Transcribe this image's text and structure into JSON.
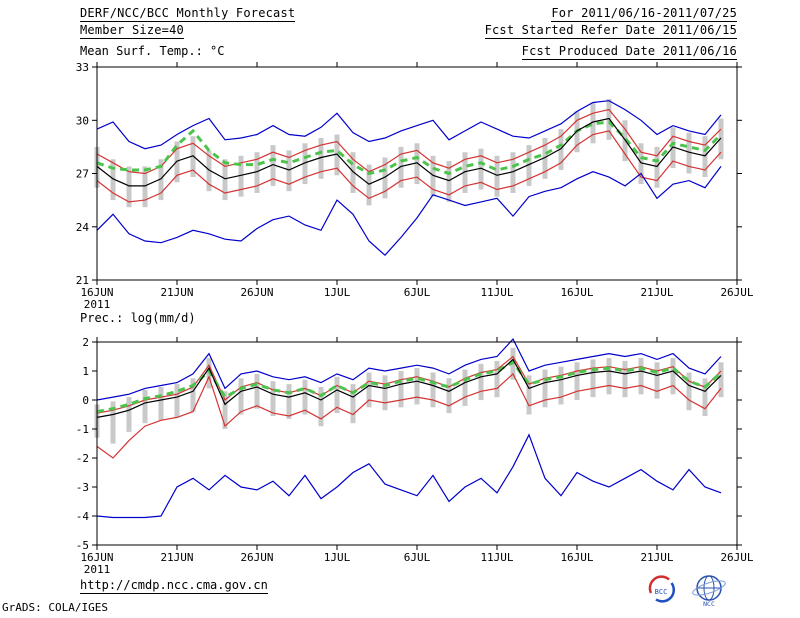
{
  "header": {
    "title": "DERF/NCC/BCC Monthly Forecast",
    "member_size": "Member Size=40",
    "for_range": "For 2011/06/16-2011/07/25",
    "fcst_started": "Fcst Started Refer Date 2011/06/15",
    "fcst_produced": "Fcst Produced Date 2011/06/16"
  },
  "footer": {
    "url": "http://cmdp.ncc.cma.gov.cn",
    "credit": "GrADS: COLA/IGES",
    "bcc_label": "BCC",
    "ncc_label": "NCC"
  },
  "colors": {
    "blue": "#0000cc",
    "red": "#d43434",
    "green": "#4cc44c",
    "black": "#000000",
    "spread": "#c9c9c9",
    "frame": "#000000"
  },
  "chart_data": [
    {
      "type": "line",
      "title": "Mean Surf. Temp.: °C",
      "ylim": [
        21,
        33
      ],
      "yticks": [
        21,
        24,
        27,
        30,
        33
      ],
      "x_total_days": 40,
      "xticks": [
        {
          "day": 0,
          "label": "16JUN",
          "sub": "2011"
        },
        {
          "day": 5,
          "label": "21JUN"
        },
        {
          "day": 10,
          "label": "26JUN"
        },
        {
          "day": 15,
          "label": "1JUL"
        },
        {
          "day": 20,
          "label": "6JUL"
        },
        {
          "day": 25,
          "label": "11JUL"
        },
        {
          "day": 30,
          "label": "16JUL"
        },
        {
          "day": 35,
          "label": "21JUL"
        },
        {
          "day": 40,
          "label": "26JUL"
        }
      ],
      "series": [
        {
          "name": "ensemble_max",
          "color": "blue",
          "style": "solid",
          "values": [
            29.5,
            29.9,
            28.8,
            28.4,
            28.6,
            29.2,
            29.7,
            30.1,
            28.9,
            29.0,
            29.2,
            29.7,
            29.2,
            29.1,
            29.6,
            30.4,
            29.3,
            28.8,
            29.0,
            29.4,
            29.7,
            30.0,
            28.9,
            29.4,
            29.9,
            29.5,
            29.1,
            29.0,
            29.4,
            29.8,
            30.5,
            31.0,
            31.1,
            30.6,
            30.0,
            29.2,
            29.7,
            29.4,
            29.2,
            30.3
          ]
        },
        {
          "name": "upper_tercile",
          "color": "red",
          "style": "solid",
          "values": [
            28.1,
            27.6,
            27.1,
            27.0,
            27.4,
            28.4,
            28.7,
            28.0,
            27.4,
            27.6,
            27.8,
            28.2,
            27.9,
            28.3,
            28.6,
            28.8,
            27.8,
            27.1,
            27.5,
            28.1,
            28.3,
            27.6,
            27.3,
            27.8,
            28.0,
            27.6,
            27.8,
            28.2,
            28.6,
            29.1,
            30.0,
            30.4,
            30.6,
            29.5,
            28.2,
            28.0,
            29.1,
            28.8,
            28.6,
            29.5
          ]
        },
        {
          "name": "ensemble_median",
          "color": "green",
          "style": "dashed",
          "values": [
            27.6,
            27.3,
            27.2,
            27.2,
            27.4,
            28.6,
            29.4,
            28.3,
            27.6,
            27.5,
            27.5,
            27.8,
            27.6,
            27.9,
            28.2,
            28.3,
            27.5,
            27.0,
            27.2,
            27.7,
            27.9,
            27.3,
            27.0,
            27.4,
            27.6,
            27.2,
            27.4,
            27.8,
            28.1,
            28.6,
            29.4,
            29.8,
            29.9,
            29.0,
            27.9,
            27.7,
            28.7,
            28.5,
            28.3,
            29.2
          ]
        },
        {
          "name": "ensemble_mean",
          "color": "black",
          "style": "solid",
          "values": [
            27.4,
            26.7,
            26.3,
            26.3,
            26.7,
            27.7,
            28.0,
            27.2,
            26.7,
            26.9,
            27.1,
            27.5,
            27.2,
            27.6,
            27.9,
            28.1,
            27.1,
            26.4,
            26.8,
            27.4,
            27.6,
            26.9,
            26.6,
            27.1,
            27.3,
            26.9,
            27.1,
            27.5,
            27.9,
            28.4,
            29.4,
            29.9,
            30.1,
            28.9,
            27.6,
            27.4,
            28.5,
            28.2,
            28.0,
            29.0
          ]
        },
        {
          "name": "lower_tercile",
          "color": "red",
          "style": "solid",
          "values": [
            26.6,
            25.9,
            25.4,
            25.5,
            25.9,
            26.9,
            27.2,
            26.4,
            25.9,
            26.1,
            26.3,
            26.7,
            26.4,
            26.8,
            27.1,
            27.3,
            26.3,
            25.6,
            26.0,
            26.6,
            26.8,
            26.1,
            25.8,
            26.3,
            26.5,
            26.1,
            26.3,
            26.7,
            27.1,
            27.6,
            28.6,
            29.2,
            29.4,
            28.1,
            26.8,
            26.6,
            27.7,
            27.4,
            27.2,
            28.2
          ]
        },
        {
          "name": "ensemble_min",
          "color": "blue",
          "style": "solid",
          "values": [
            23.8,
            24.7,
            23.6,
            23.2,
            23.1,
            23.4,
            23.8,
            23.6,
            23.3,
            23.2,
            23.9,
            24.4,
            24.6,
            24.1,
            23.8,
            25.5,
            24.7,
            23.2,
            22.4,
            23.4,
            24.5,
            25.8,
            25.5,
            25.2,
            25.4,
            25.6,
            24.6,
            25.7,
            26.0,
            26.2,
            26.7,
            27.1,
            26.8,
            26.3,
            27.0,
            25.6,
            26.4,
            26.6,
            26.2,
            27.4
          ]
        }
      ],
      "spread_bars": {
        "top": [
          28.5,
          27.8,
          27.4,
          27.4,
          27.8,
          28.8,
          29.1,
          28.3,
          27.8,
          28.0,
          28.2,
          28.6,
          28.3,
          28.7,
          29.0,
          29.2,
          28.2,
          27.5,
          27.9,
          28.5,
          28.7,
          28.0,
          27.7,
          28.2,
          28.4,
          28.0,
          28.2,
          28.6,
          29.0,
          29.5,
          30.5,
          31.0,
          31.2,
          30.0,
          28.7,
          28.5,
          29.6,
          29.3,
          29.1,
          30.1
        ],
        "bottom": [
          26.2,
          25.5,
          25.1,
          25.1,
          25.5,
          26.5,
          26.8,
          26.0,
          25.5,
          25.7,
          25.9,
          26.3,
          26.0,
          26.4,
          26.7,
          26.9,
          25.9,
          25.2,
          25.6,
          26.2,
          26.4,
          25.7,
          25.4,
          25.9,
          26.1,
          25.7,
          25.9,
          26.3,
          26.7,
          27.2,
          28.2,
          28.7,
          28.9,
          27.7,
          26.4,
          26.2,
          27.3,
          27.0,
          26.8,
          27.8
        ]
      }
    },
    {
      "type": "line",
      "title": "Prec.: log(mm/d)",
      "ylim": [
        -5,
        2
      ],
      "yticks": [
        -5,
        -4,
        -3,
        -2,
        -1,
        0,
        1,
        2
      ],
      "x_total_days": 40,
      "xticks": [
        {
          "day": 0,
          "label": "16JUN",
          "sub": "2011"
        },
        {
          "day": 5,
          "label": "21JUN"
        },
        {
          "day": 10,
          "label": "26JUN"
        },
        {
          "day": 15,
          "label": "1JUL"
        },
        {
          "day": 20,
          "label": "6JUL"
        },
        {
          "day": 25,
          "label": "11JUL"
        },
        {
          "day": 30,
          "label": "16JUL"
        },
        {
          "day": 35,
          "label": "21JUL"
        },
        {
          "day": 40,
          "label": "26JUL"
        }
      ],
      "series": [
        {
          "name": "ensemble_max",
          "color": "blue",
          "style": "solid",
          "values": [
            0.0,
            0.1,
            0.2,
            0.4,
            0.5,
            0.6,
            0.9,
            1.6,
            0.4,
            0.9,
            1.0,
            0.8,
            0.7,
            0.8,
            0.6,
            0.9,
            0.7,
            1.1,
            1.0,
            1.1,
            1.2,
            1.1,
            0.9,
            1.2,
            1.4,
            1.5,
            2.1,
            1.0,
            1.2,
            1.3,
            1.4,
            1.5,
            1.6,
            1.5,
            1.6,
            1.4,
            1.6,
            1.1,
            0.9,
            1.5
          ]
        },
        {
          "name": "upper_tercile",
          "color": "red",
          "style": "solid",
          "values": [
            -0.45,
            -0.35,
            -0.2,
            0.0,
            0.1,
            0.2,
            0.45,
            1.2,
            0.0,
            0.45,
            0.6,
            0.35,
            0.25,
            0.4,
            0.15,
            0.5,
            0.25,
            0.65,
            0.55,
            0.7,
            0.8,
            0.65,
            0.45,
            0.75,
            0.95,
            1.05,
            1.5,
            0.55,
            0.75,
            0.85,
            1.0,
            1.1,
            1.15,
            1.05,
            1.15,
            1.0,
            1.15,
            0.65,
            0.45,
            1.0
          ]
        },
        {
          "name": "ensemble_median",
          "color": "green",
          "style": "dashed",
          "values": [
            -0.4,
            -0.3,
            -0.15,
            0.05,
            0.15,
            0.3,
            0.5,
            1.0,
            0.1,
            0.4,
            0.55,
            0.35,
            0.25,
            0.4,
            0.15,
            0.5,
            0.25,
            0.6,
            0.5,
            0.65,
            0.75,
            0.6,
            0.45,
            0.7,
            0.9,
            1.0,
            1.3,
            0.55,
            0.7,
            0.8,
            0.95,
            1.05,
            1.1,
            1.0,
            1.1,
            0.95,
            1.1,
            0.65,
            0.45,
            0.95
          ]
        },
        {
          "name": "ensemble_mean",
          "color": "black",
          "style": "solid",
          "values": [
            -0.6,
            -0.5,
            -0.35,
            -0.1,
            0.0,
            0.1,
            0.3,
            1.1,
            -0.15,
            0.3,
            0.45,
            0.2,
            0.1,
            0.25,
            0.0,
            0.35,
            0.1,
            0.5,
            0.4,
            0.55,
            0.65,
            0.5,
            0.3,
            0.6,
            0.8,
            0.9,
            1.4,
            0.4,
            0.6,
            0.7,
            0.85,
            0.95,
            1.0,
            0.9,
            1.0,
            0.85,
            1.0,
            0.5,
            0.3,
            0.85
          ]
        },
        {
          "name": "lower_tercile",
          "color": "red",
          "style": "solid",
          "values": [
            -1.6,
            -2.0,
            -1.4,
            -0.9,
            -0.7,
            -0.6,
            -0.4,
            0.8,
            -0.9,
            -0.4,
            -0.2,
            -0.45,
            -0.55,
            -0.35,
            -0.65,
            -0.25,
            -0.5,
            0.0,
            -0.1,
            0.0,
            0.1,
            0.0,
            -0.2,
            0.1,
            0.3,
            0.4,
            0.9,
            -0.2,
            0.0,
            0.1,
            0.3,
            0.4,
            0.5,
            0.4,
            0.5,
            0.3,
            0.5,
            0.0,
            -0.3,
            0.4
          ]
        },
        {
          "name": "ensemble_min",
          "color": "blue",
          "style": "solid",
          "values": [
            -4.0,
            -4.05,
            -4.05,
            -4.05,
            -4.0,
            -3.0,
            -2.7,
            -3.1,
            -2.6,
            -3.0,
            -3.1,
            -2.8,
            -3.3,
            -2.6,
            -3.4,
            -3.0,
            -2.5,
            -2.2,
            -2.9,
            -3.1,
            -3.3,
            -2.6,
            -3.5,
            -3.0,
            -2.7,
            -3.2,
            -2.3,
            -1.2,
            -2.7,
            -3.3,
            -2.5,
            -2.8,
            -3.0,
            -2.7,
            -2.4,
            -2.8,
            -3.1,
            -2.4,
            -3.0,
            -3.2
          ]
        }
      ],
      "spread_bars": {
        "top": [
          -0.15,
          -0.05,
          0.1,
          0.35,
          0.45,
          0.55,
          0.75,
          1.45,
          0.3,
          0.75,
          0.9,
          0.65,
          0.55,
          0.7,
          0.45,
          0.8,
          0.55,
          0.95,
          0.85,
          1.0,
          1.1,
          0.95,
          0.75,
          1.05,
          1.25,
          1.35,
          1.8,
          0.85,
          1.05,
          1.15,
          1.3,
          1.4,
          1.45,
          1.35,
          1.45,
          1.3,
          1.45,
          0.95,
          0.75,
          1.3
        ],
        "bottom": [
          -1.3,
          -1.5,
          -1.1,
          -0.8,
          -0.7,
          -0.6,
          -0.4,
          0.4,
          -1.0,
          -0.5,
          -0.3,
          -0.55,
          -0.65,
          -0.5,
          -0.9,
          -0.45,
          -0.8,
          -0.25,
          -0.35,
          -0.25,
          -0.15,
          -0.25,
          -0.45,
          -0.2,
          0.0,
          0.1,
          0.7,
          -0.5,
          -0.25,
          -0.15,
          0.0,
          0.1,
          0.2,
          0.1,
          0.2,
          0.05,
          0.2,
          -0.35,
          -0.55,
          0.1
        ]
      }
    }
  ]
}
